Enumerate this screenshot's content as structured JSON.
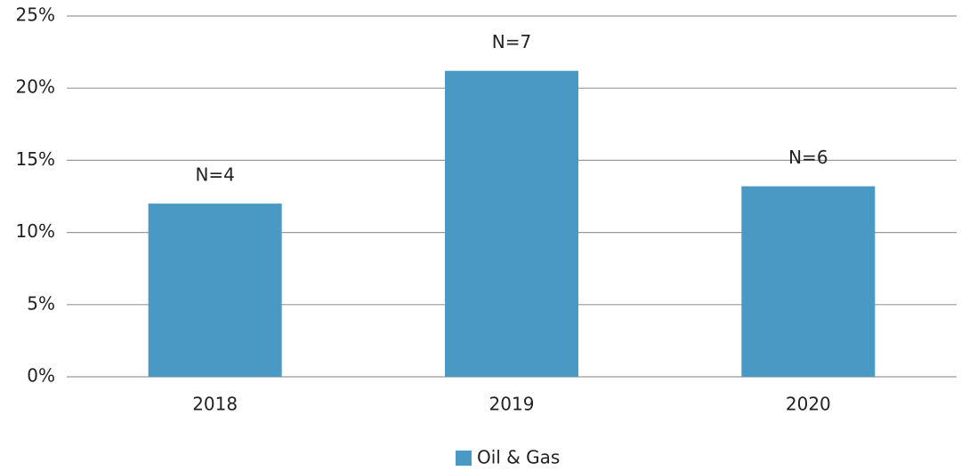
{
  "chart_data": {
    "type": "bar",
    "categories": [
      "2018",
      "2019",
      "2020"
    ],
    "series": [
      {
        "name": "Oil & Gas",
        "color": "#4a99c5",
        "values": [
          12,
          21.2,
          13.2
        ]
      }
    ],
    "annotations": [
      "N=4",
      "N=7",
      "N=6"
    ],
    "ylim": [
      0,
      25
    ],
    "yticks": [
      {
        "value": 0,
        "label": "0%"
      },
      {
        "value": 5,
        "label": "5%"
      },
      {
        "value": 10,
        "label": "10%"
      },
      {
        "value": 15,
        "label": "15%"
      },
      {
        "value": 20,
        "label": "20%"
      },
      {
        "value": 25,
        "label": "25%"
      }
    ],
    "grid": true,
    "legend": "bottom"
  }
}
